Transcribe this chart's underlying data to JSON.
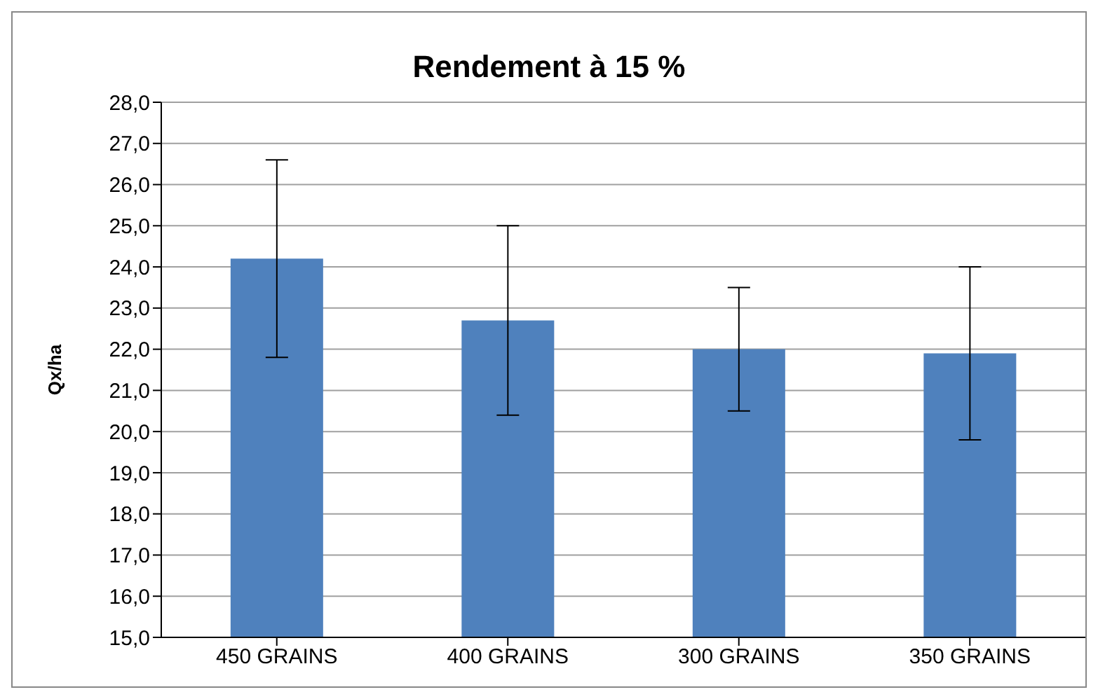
{
  "chart_data": {
    "type": "bar",
    "title": "Rendement à 15 %",
    "ylabel": "Qx/ha",
    "categories": [
      "450 GRAINS",
      "400 GRAINS",
      "300 GRAINS",
      "350 GRAINS"
    ],
    "values": [
      24.2,
      22.7,
      22.0,
      21.9
    ],
    "errors": [
      2.4,
      2.3,
      1.5,
      2.1
    ],
    "color": "#4f81bd",
    "ylim": [
      15,
      28
    ],
    "yticks": [
      {
        "value": 15,
        "label": "15,0"
      },
      {
        "value": 16,
        "label": "16,0"
      },
      {
        "value": 17,
        "label": "17,0"
      },
      {
        "value": 18,
        "label": "18,0"
      },
      {
        "value": 19,
        "label": "19,0"
      },
      {
        "value": 20,
        "label": "20,0"
      },
      {
        "value": 21,
        "label": "21,0"
      },
      {
        "value": 22,
        "label": "22,0"
      },
      {
        "value": 23,
        "label": "23,0"
      },
      {
        "value": 24,
        "label": "24,0"
      },
      {
        "value": 25,
        "label": "25,0"
      },
      {
        "value": 26,
        "label": "26,0"
      },
      {
        "value": 27,
        "label": "27,0"
      },
      {
        "value": 28,
        "label": "28,0"
      }
    ],
    "grid": "y",
    "legend": false
  }
}
